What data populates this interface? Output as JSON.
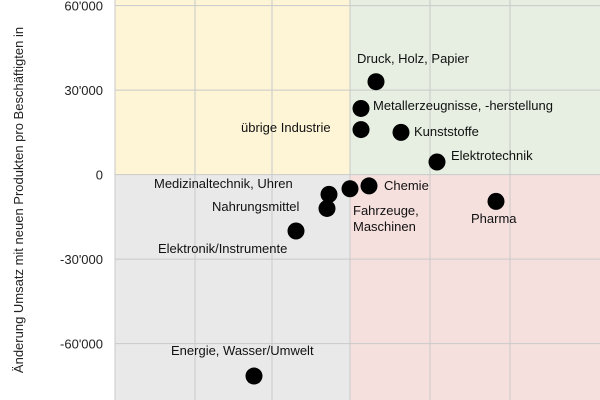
{
  "chart_data": {
    "type": "scatter",
    "ylabel": "Änderung Umsatz mit neuen Produkten pro Beschäftigten in",
    "ylim": [
      -80000,
      62000
    ],
    "yticks": [
      60000,
      30000,
      0,
      -30000,
      -60000
    ],
    "ytick_labels": [
      "60'000",
      "30'000",
      "0",
      "-30'000",
      "-60'000"
    ],
    "x_gridlines": 5,
    "grid": true,
    "quadrants": [
      {
        "name": "top-left",
        "color": "#fdf5d6"
      },
      {
        "name": "top-right",
        "color": "#e6efe2"
      },
      {
        "name": "bottom-left",
        "color": "#e9e9e9"
      },
      {
        "name": "bottom-right",
        "color": "#f6e0de"
      }
    ],
    "point_color": "#000000",
    "points": [
      {
        "name": "Druck, Holz, Papier",
        "label": "Druck, Holz, Papier",
        "y": 33000
      },
      {
        "name": "Metallerzeugnisse",
        "label": "Metallerzeugnisse, -herstellung",
        "y": 23500
      },
      {
        "name": "übrige Industrie",
        "label": "übrige Industrie",
        "y": 16000
      },
      {
        "name": "Kunststoffe",
        "label": "Kunststoffe",
        "y": 15000
      },
      {
        "name": "Elektrotechnik",
        "label": "Elektrotechnik",
        "y": 4500
      },
      {
        "name": "Medizinaltechnik, Uhren",
        "label": "Medizinaltechnik, Uhren",
        "y": -7000
      },
      {
        "name": "Chemie",
        "label": "Chemie",
        "y": -4000
      },
      {
        "name": "Fahrzeuge, Maschinen",
        "label": [
          "Fahrzeuge,",
          "Maschinen"
        ],
        "y": -5000
      },
      {
        "name": "Nahrungsmittel",
        "label": "Nahrungsmittel",
        "y": -12000
      },
      {
        "name": "Elektronik/Instrumente",
        "label": "Elektronik/Instrumente",
        "y": -20000
      },
      {
        "name": "Pharma",
        "label": "Pharma",
        "y": -9500
      },
      {
        "name": "Energie, Wasser/Umwelt",
        "label": "Energie, Wasser/Umwelt",
        "y": -71500
      }
    ]
  }
}
